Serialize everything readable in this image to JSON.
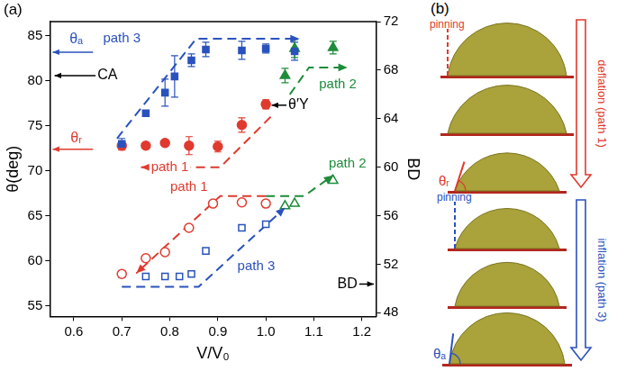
{
  "chart_data": {
    "type": "scatter",
    "panel_label": "(a)",
    "x_label": "V/V₀",
    "y_label": "θ(deg)",
    "y2_label": "BD",
    "xlim": [
      0.55,
      1.23
    ],
    "xticks": [
      0.6,
      0.7,
      0.8,
      0.9,
      {
        "value": 1,
        "label": "1.0"
      },
      1.1,
      1.2
    ],
    "ylim": [
      53.8,
      86.6
    ],
    "yticks": [
      55,
      60,
      65,
      70,
      75,
      80,
      85
    ],
    "y2lim": [
      47.7,
      72
    ],
    "y2ticks": [
      48,
      52,
      56,
      60,
      64,
      68,
      72
    ],
    "grid": false,
    "series": [
      {
        "name": "path 3",
        "color": "#2a52be",
        "marker": "square",
        "x": [
          0.7,
          0.75,
          0.79,
          0.81,
          0.845,
          0.875,
          0.95,
          1.0,
          1.06
        ],
        "values": [
          73.0,
          76.4,
          78.7,
          80.5,
          82.3,
          83.5,
          83.4,
          83.6,
          83.3
        ],
        "errors": [
          0.6,
          0.3,
          1.5,
          2.3,
          0.7,
          0.8,
          1.0,
          0.5,
          1.0
        ]
      },
      {
        "name": "path 1",
        "color": "#e03a2f",
        "marker": "circle",
        "x": [
          0.7,
          0.75,
          0.79,
          0.84,
          0.9,
          0.95,
          1.0
        ],
        "values": [
          72.8,
          72.8,
          73.1,
          72.8,
          72.7,
          75.1,
          77.4
        ],
        "errors": [
          0.5,
          0.3,
          0.3,
          1.0,
          0.6,
          0.8,
          0.5
        ]
      },
      {
        "name": "path 2",
        "color": "#1e8c3a",
        "marker": "triangle",
        "x": [
          1.04,
          1.06,
          1.14
        ],
        "values": [
          80.6,
          83.6,
          83.7
        ],
        "errors": [
          0.8,
          1.0,
          0.7
        ]
      },
      {
        "name": "path 1",
        "color": "#e03a2f",
        "marker": "open_circle",
        "axis": "y2",
        "x": [
          0.7,
          0.75,
          0.79,
          0.84,
          0.89,
          0.95,
          1.0
        ],
        "values": [
          51.2,
          52.5,
          53.0,
          55.0,
          57.0,
          57.1,
          57.0
        ]
      },
      {
        "name": "path 3",
        "color": "#2a52be",
        "marker": "open_square",
        "axis": "y2",
        "x": [
          0.7,
          0.75,
          0.79,
          0.82,
          0.845,
          0.875,
          0.95,
          1.0
        ],
        "values": [
          51.2,
          51.0,
          51.0,
          51.0,
          51.2,
          53.1,
          55.0,
          55.3
        ]
      },
      {
        "name": "path 2",
        "color": "#1e8c3a",
        "marker": "open_triangle",
        "axis": "y2",
        "x": [
          1.04,
          1.06,
          1.14
        ],
        "values": [
          56.8,
          57.0,
          58.9
        ]
      }
    ],
    "guides": [
      {
        "name": "path 3",
        "color": "#2a52be",
        "line_style": "dashed",
        "x": [
          0.69,
          0.855,
          1.07
        ],
        "values": [
          73.6,
          84.7,
          84.7
        ],
        "label_x": 0.7,
        "label_y": 84.7
      },
      {
        "name": "path 1",
        "color": "#e03a2f",
        "line_style": "dashed",
        "x": [
          1.01,
          0.905,
          0.74
        ],
        "values": [
          76.0,
          70.4,
          70.4
        ],
        "label_x": 0.8,
        "label_y": 70.4
      },
      {
        "name": "path 2",
        "color": "#1e8c3a",
        "line_style": "dashed",
        "x": [
          1.05,
          1.09,
          1.17
        ],
        "values": [
          78.5,
          81.5,
          81.5
        ],
        "label_x": 1.15,
        "label_y": 79.6
      },
      {
        "name": "path 1",
        "color": "#e03a2f",
        "line_style": "dashed",
        "x": [
          1.0,
          0.905,
          0.73
        ],
        "values": [
          67.2,
          67.2,
          58.6
        ],
        "label_x": 0.84,
        "label_y": 68.2
      },
      {
        "name": "path 2",
        "color": "#1e8c3a",
        "line_style": "dashed",
        "x": [
          1.0,
          1.08,
          1.14
        ],
        "values": [
          67.2,
          67.2,
          69.5
        ],
        "label_x": 1.17,
        "label_y": 70.8
      },
      {
        "name": "path 3",
        "color": "#2a52be",
        "line_style": "dashed",
        "x": [
          0.7,
          0.86,
          1.04
        ],
        "values": [
          57.1,
          57.1,
          65.9
        ],
        "label_x": 0.98,
        "label_y": 59.4
      }
    ],
    "annotations": [
      {
        "text": "θₐ",
        "x": 0.605,
        "y": 84.6,
        "color": "#2a52be",
        "arrow": [
          [
            0.64,
            83.2
          ],
          [
            0.556,
            83.2
          ]
        ]
      },
      {
        "text": "θᵣ",
        "x": 0.605,
        "y": 73.6,
        "color": "#e03a2f",
        "arrow": [
          [
            0.64,
            72.4
          ],
          [
            0.556,
            72.4
          ]
        ]
      },
      {
        "text": "CA",
        "x": 0.67,
        "y": 80.6,
        "color": "#000000",
        "arrow": [
          [
            0.648,
            80.6
          ],
          [
            0.56,
            80.6
          ]
        ]
      },
      {
        "text": "BD",
        "x": 1.17,
        "y": 57.4,
        "color": "#000000",
        "arrow": [
          [
            1.19,
            57.4
          ],
          [
            1.225,
            57.4
          ]
        ]
      },
      {
        "text": "θ′Y",
        "x": 1.068,
        "y": 77.3,
        "color": "#000000",
        "arrow": [
          [
            1.045,
            77.3
          ],
          [
            1.012,
            77.3
          ]
        ]
      }
    ]
  },
  "panel_b": {
    "label": "(b)",
    "deflation": {
      "text": "deflation (path 1)",
      "color": "#e03a2f",
      "pinning": "pinning",
      "angle": "θᵣ"
    },
    "inflation": {
      "text": "inflation (path 3)",
      "color": "#2a52be",
      "pinning": "pinning",
      "angle": "θₐ"
    }
  }
}
